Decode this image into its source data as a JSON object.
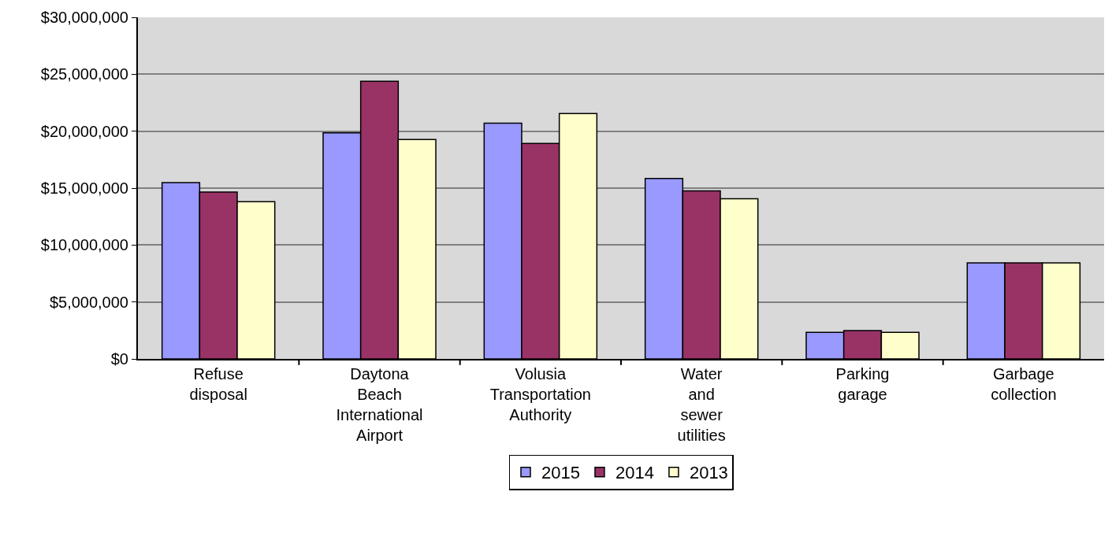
{
  "chart_data": {
    "type": "bar",
    "categories": [
      "Refuse\ndisposal",
      "Daytona\nBeach\nInternational\nAirport",
      "Volusia\nTransportation\nAuthority",
      "Water\nand\nsewer\nutilities",
      "Parking\ngarage",
      "Garbage\ncollection"
    ],
    "series": [
      {
        "name": "2015",
        "color": "#9999ff",
        "values": [
          15480000,
          19860000,
          20710000,
          15840000,
          2340000,
          8440000
        ]
      },
      {
        "name": "2014",
        "color": "#993366",
        "values": [
          14660000,
          24380000,
          18930000,
          14750000,
          2480000,
          8440000
        ]
      },
      {
        "name": "2013",
        "color": "#ffffcc",
        "values": [
          13810000,
          19270000,
          21550000,
          14060000,
          2340000,
          8440000
        ]
      }
    ],
    "ylim": [
      0,
      30000000
    ],
    "yticks": [
      {
        "value": 0,
        "label": "$0"
      },
      {
        "value": 5000000,
        "label": "$5,000,000"
      },
      {
        "value": 10000000,
        "label": "$10,000,000"
      },
      {
        "value": 15000000,
        "label": "$15,000,000"
      },
      {
        "value": 20000000,
        "label": "$20,000,000"
      },
      {
        "value": 25000000,
        "label": "$25,000,000"
      },
      {
        "value": 30000000,
        "label": "$30,000,000"
      }
    ],
    "grid": "y",
    "legend": "bottom"
  }
}
